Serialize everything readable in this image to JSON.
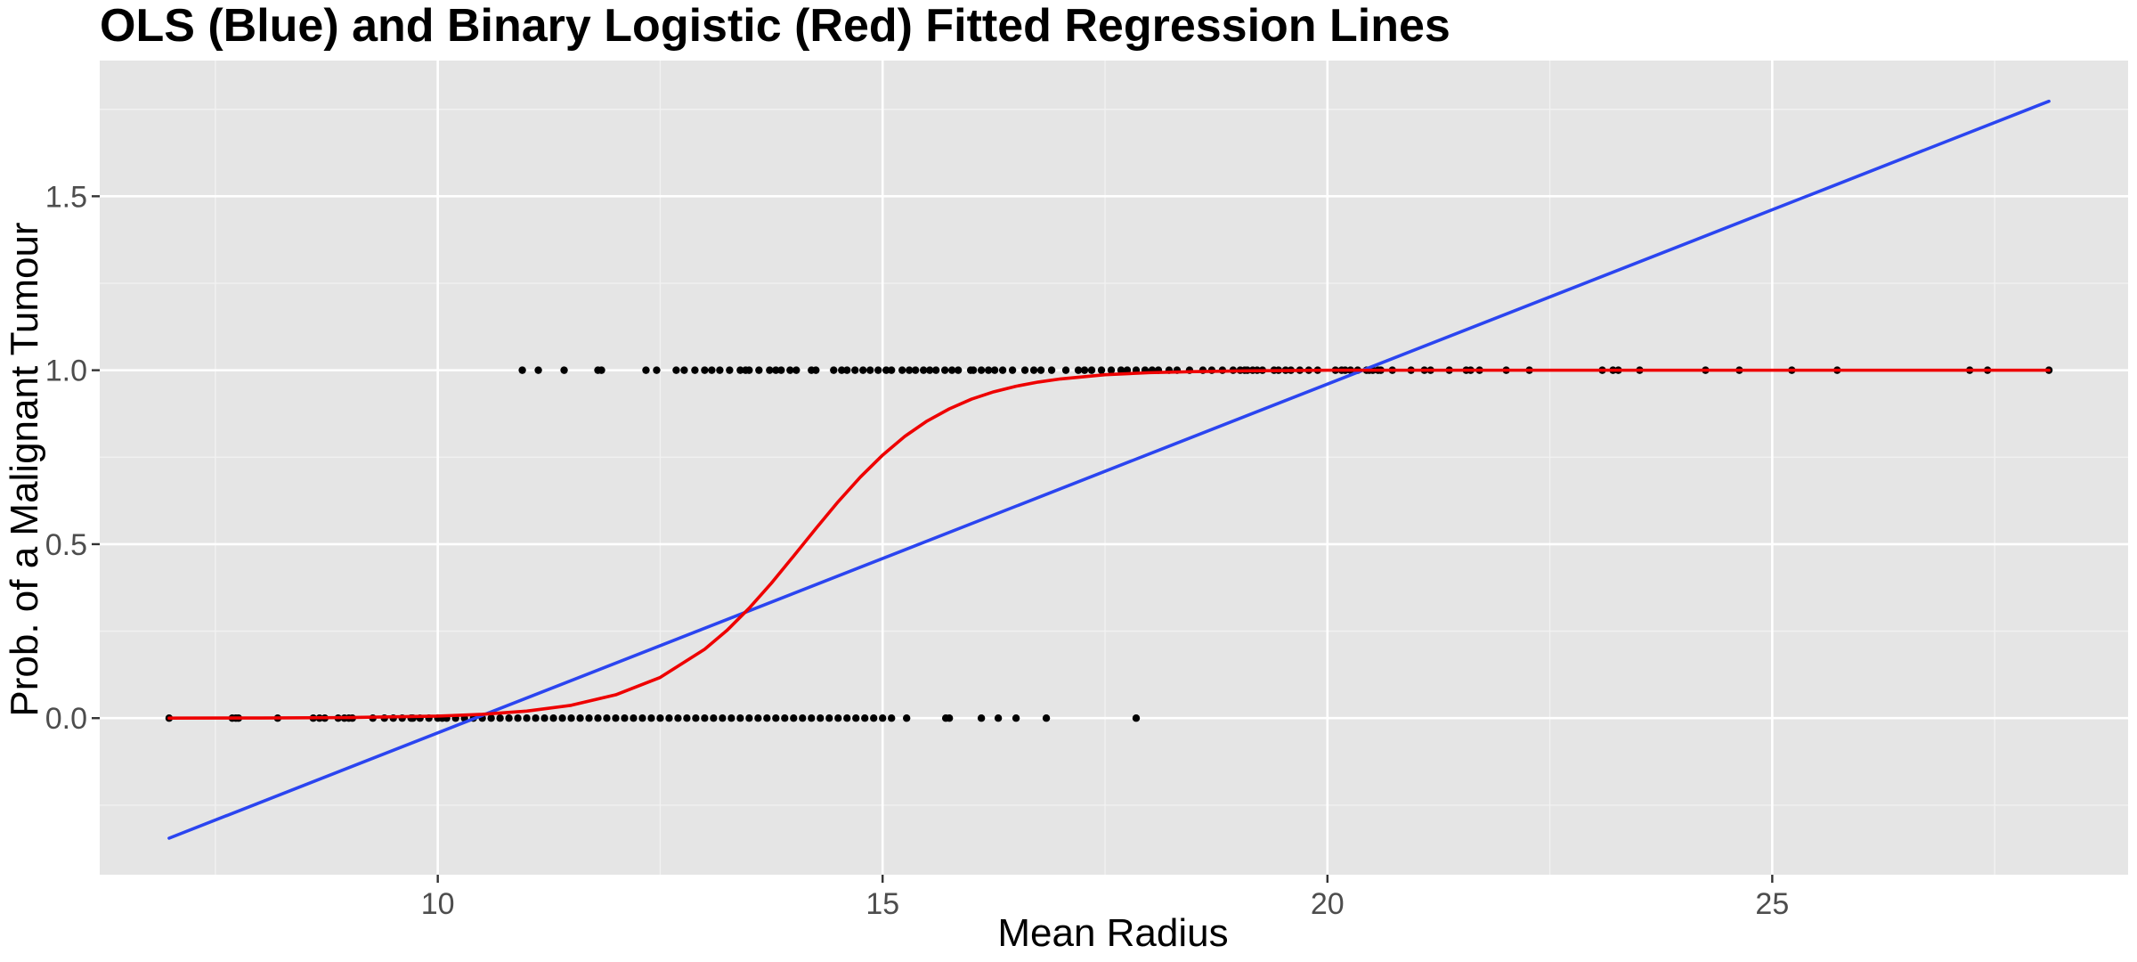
{
  "colors": {
    "panel_background": "#e5e5e5",
    "grid_major": "#ffffff",
    "grid_minor": "#f2f2f2",
    "ols_line": "#2b45f0",
    "logistic_line": "#ee0000",
    "points": "#000000",
    "tick_text": "#4d4d4d"
  },
  "chart_data": {
    "type": "scatter",
    "title": "OLS (Blue) and Binary Logistic (Red) Fitted Regression Lines",
    "xlabel": "Mean Radius",
    "ylabel": "Prob. of a Malignant Tumour",
    "xlim": [
      6.2,
      29.0
    ],
    "ylim": [
      -0.45,
      1.89
    ],
    "x_ticks": [
      10,
      15,
      20,
      25
    ],
    "x_tick_labels": [
      "10",
      "15",
      "20",
      "25"
    ],
    "y_ticks": [
      0.0,
      0.5,
      1.0,
      1.5
    ],
    "y_tick_labels": [
      "0.0",
      "0.5",
      "1.0",
      "1.5"
    ],
    "grid": true,
    "series": [
      {
        "kind": "points",
        "points_y0": [
          6.98,
          7.69,
          7.73,
          7.76,
          8.2,
          8.6,
          8.67,
          8.73,
          8.88,
          8.95,
          9.0,
          9.04,
          9.27,
          9.4,
          9.5,
          9.6,
          9.7,
          9.72,
          9.8,
          9.9,
          10.0,
          10.05,
          10.1,
          10.2,
          10.3,
          10.4,
          10.5,
          10.6,
          10.7,
          10.8,
          10.9,
          11.0,
          11.1,
          11.2,
          11.3,
          11.4,
          11.5,
          11.6,
          11.7,
          11.8,
          11.9,
          12.0,
          12.1,
          12.2,
          12.3,
          12.4,
          12.5,
          12.6,
          12.7,
          12.8,
          12.9,
          13.0,
          13.1,
          13.2,
          13.3,
          13.4,
          13.5,
          13.6,
          13.7,
          13.8,
          13.9,
          14.0,
          14.1,
          14.2,
          14.3,
          14.4,
          14.5,
          14.6,
          14.7,
          14.8,
          14.9,
          15.0,
          15.1,
          15.27,
          15.71,
          15.75,
          16.11,
          16.3,
          16.5,
          16.84,
          17.85
        ],
        "points_y1": [
          10.95,
          11.13,
          11.42,
          11.8,
          11.84,
          12.34,
          12.46,
          12.68,
          12.77,
          12.89,
          13.0,
          13.08,
          13.17,
          13.28,
          13.4,
          13.46,
          13.5,
          13.61,
          13.73,
          13.8,
          13.86,
          13.96,
          14.03,
          14.2,
          14.25,
          14.45,
          14.54,
          14.6,
          14.69,
          14.78,
          14.86,
          14.95,
          15.04,
          15.1,
          15.22,
          15.3,
          15.37,
          15.46,
          15.53,
          15.6,
          15.7,
          15.78,
          15.85,
          15.99,
          16.02,
          16.11,
          16.19,
          16.26,
          16.35,
          16.46,
          16.6,
          16.7,
          16.78,
          16.9,
          17.06,
          17.2,
          17.27,
          17.35,
          17.46,
          17.57,
          17.68,
          17.75,
          17.85,
          17.95,
          18.03,
          18.1,
          18.22,
          18.31,
          18.45,
          18.6,
          18.7,
          18.82,
          18.94,
          19.02,
          19.07,
          19.1,
          19.16,
          19.21,
          19.27,
          19.4,
          19.45,
          19.53,
          19.59,
          19.69,
          19.79,
          19.89,
          20.09,
          20.16,
          20.2,
          20.26,
          20.34,
          20.44,
          20.47,
          20.51,
          20.57,
          20.6,
          20.73,
          20.94,
          21.09,
          21.16,
          21.37,
          21.56,
          21.61,
          21.71,
          22.01,
          22.27,
          23.09,
          23.21,
          23.27,
          23.51,
          24.25,
          24.63,
          25.22,
          25.73,
          27.22,
          27.42,
          28.11
        ]
      },
      {
        "name": "OLS (Blue)",
        "kind": "line",
        "x": [
          6.98,
          28.11
        ],
        "y": [
          -0.345,
          1.773
        ]
      },
      {
        "name": "Binary Logistic (Red)",
        "kind": "line",
        "x": [
          6.98,
          8.0,
          9.0,
          10.0,
          10.5,
          11.0,
          11.5,
          12.0,
          12.5,
          13.0,
          13.25,
          13.5,
          13.75,
          14.0,
          14.25,
          14.5,
          14.75,
          15.0,
          15.25,
          15.5,
          15.75,
          16.0,
          16.25,
          16.5,
          16.75,
          17.0,
          17.5,
          18.0,
          18.5,
          19.0,
          19.5,
          20.0,
          21.0,
          22.0,
          24.0,
          26.0,
          28.11
        ],
        "y": [
          0.0,
          0.0005,
          0.0017,
          0.0059,
          0.0109,
          0.0202,
          0.037,
          0.067,
          0.117,
          0.198,
          0.252,
          0.316,
          0.388,
          0.466,
          0.545,
          0.622,
          0.693,
          0.756,
          0.81,
          0.854,
          0.889,
          0.917,
          0.938,
          0.954,
          0.966,
          0.975,
          0.987,
          0.993,
          0.996,
          0.998,
          0.999,
          1.0,
          1.0,
          1.0,
          1.0,
          1.0,
          1.0
        ]
      }
    ]
  }
}
